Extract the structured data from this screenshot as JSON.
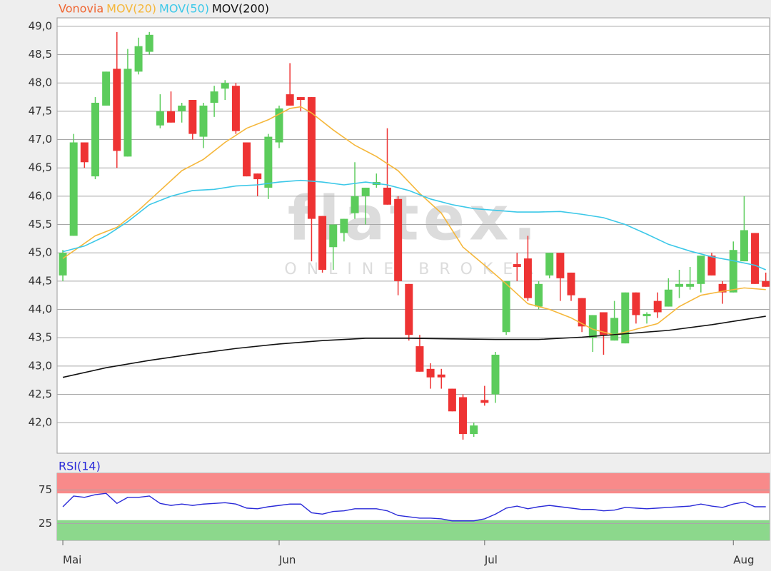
{
  "chart_data": [
    {
      "type": "candlestick",
      "watermark": {
        "brand": "flatex.",
        "tagline": "ONLINE BROKER"
      },
      "xlim": [
        -0.53,
        65.35
      ],
      "ylim": [
        41.46,
        49.15
      ],
      "yticks": [
        {
          "value": 42.0,
          "label": "42,0"
        },
        {
          "value": 42.5,
          "label": "42,5"
        },
        {
          "value": 43.0,
          "label": "43,0"
        },
        {
          "value": 43.5,
          "label": "43,5"
        },
        {
          "value": 44.0,
          "label": "44,0"
        },
        {
          "value": 44.5,
          "label": "44,5"
        },
        {
          "value": 45.0,
          "label": "45,0"
        },
        {
          "value": 45.5,
          "label": "45,5"
        },
        {
          "value": 46.0,
          "label": "46,0"
        },
        {
          "value": 46.5,
          "label": "46,5"
        },
        {
          "value": 47.0,
          "label": "47,0"
        },
        {
          "value": 47.5,
          "label": "47,5"
        },
        {
          "value": 48.0,
          "label": "48,0"
        },
        {
          "value": 48.5,
          "label": "48,5"
        },
        {
          "value": 49.0,
          "label": "49,0"
        }
      ],
      "grid": true,
      "series": [
        {
          "name": "Vonovia",
          "type": "candlestick",
          "color": "#f0642f",
          "up_color": "#5ccc5c",
          "down_color": "#ee3333",
          "open": [
            44.6,
            45.3,
            46.95,
            46.35,
            47.6,
            48.25,
            46.7,
            48.2,
            48.55,
            47.25,
            47.5,
            47.5,
            47.7,
            47.05,
            47.65,
            47.9,
            47.95,
            46.95,
            46.4,
            46.15,
            46.95,
            47.8,
            47.75,
            47.75,
            45.65,
            45.1,
            45.35,
            45.7,
            46.0,
            46.2,
            46.15,
            45.95,
            44.45,
            43.35,
            42.95,
            42.85,
            42.6,
            42.45,
            41.8,
            42.4,
            42.5,
            43.6,
            44.8,
            44.9,
            44.05,
            44.6,
            45.0,
            44.65,
            44.2,
            43.5,
            43.95,
            43.45,
            43.4,
            44.3,
            43.88,
            44.15,
            44.05,
            44.4,
            44.4,
            44.45,
            44.95,
            44.45,
            44.3,
            44.85,
            45.35,
            44.5
          ],
          "high": [
            45.05,
            47.1,
            46.95,
            47.75,
            48.2,
            48.9,
            48.6,
            48.8,
            48.9,
            47.8,
            47.85,
            47.65,
            47.7,
            47.65,
            47.95,
            48.05,
            48.0,
            46.95,
            46.4,
            47.1,
            47.6,
            48.35,
            47.75,
            47.75,
            45.65,
            45.5,
            45.6,
            46.6,
            46.15,
            46.4,
            47.2,
            46.0,
            44.45,
            43.55,
            43.05,
            42.95,
            42.6,
            42.5,
            42.0,
            42.65,
            43.25,
            44.5,
            45.0,
            45.3,
            44.5,
            45.0,
            45.0,
            44.65,
            44.2,
            43.9,
            43.95,
            44.15,
            44.3,
            44.3,
            43.95,
            44.3,
            44.55,
            44.7,
            44.75,
            44.95,
            45.0,
            44.5,
            45.2,
            46.0,
            45.35,
            44.65
          ],
          "low": [
            44.5,
            45.3,
            46.5,
            46.3,
            47.6,
            46.5,
            46.7,
            48.15,
            48.5,
            47.2,
            47.3,
            47.3,
            47.0,
            46.85,
            47.4,
            47.7,
            47.1,
            46.35,
            46.0,
            45.95,
            46.85,
            47.6,
            47.5,
            44.85,
            44.65,
            44.7,
            45.2,
            45.6,
            45.5,
            46.15,
            45.85,
            44.25,
            43.45,
            42.9,
            42.6,
            42.6,
            42.2,
            41.7,
            41.75,
            42.3,
            42.35,
            43.55,
            44.5,
            44.15,
            44.0,
            44.55,
            44.15,
            44.15,
            43.6,
            43.25,
            43.2,
            43.45,
            43.4,
            43.75,
            43.75,
            43.85,
            44.05,
            44.2,
            44.35,
            44.3,
            44.6,
            44.1,
            44.3,
            44.85,
            44.45,
            44.4
          ],
          "close": [
            45.0,
            46.95,
            46.6,
            47.65,
            48.2,
            46.8,
            48.25,
            48.65,
            48.85,
            47.5,
            47.3,
            47.6,
            47.1,
            47.6,
            47.85,
            48.0,
            47.15,
            46.35,
            46.3,
            47.05,
            47.55,
            47.6,
            47.7,
            45.6,
            44.7,
            45.5,
            45.6,
            46.0,
            46.15,
            46.25,
            45.85,
            44.5,
            43.55,
            42.9,
            42.8,
            42.8,
            42.2,
            41.8,
            41.95,
            42.35,
            43.2,
            44.5,
            44.75,
            44.2,
            44.45,
            45.0,
            44.55,
            44.25,
            43.7,
            43.9,
            43.55,
            43.85,
            44.3,
            43.9,
            43.92,
            43.95,
            44.35,
            44.45,
            44.45,
            44.95,
            44.6,
            44.3,
            45.05,
            45.4,
            44.45,
            44.4
          ]
        },
        {
          "name": "MOV(20)",
          "type": "line",
          "color": "#f5b73b",
          "x": [
            0,
            3,
            5,
            7,
            9,
            11,
            13,
            15,
            17,
            19,
            21,
            22,
            23,
            25,
            27,
            29,
            31,
            33,
            35,
            37,
            39,
            41,
            43,
            45,
            47,
            49,
            51,
            53,
            55,
            57,
            59,
            61,
            63,
            65
          ],
          "values": [
            44.9,
            45.3,
            45.45,
            45.75,
            46.1,
            46.45,
            46.65,
            46.95,
            47.2,
            47.35,
            47.55,
            47.58,
            47.47,
            47.17,
            46.9,
            46.7,
            46.45,
            46.05,
            45.7,
            45.1,
            44.78,
            44.45,
            44.1,
            44.0,
            43.85,
            43.65,
            43.55,
            43.65,
            43.75,
            44.05,
            44.25,
            44.32,
            44.38,
            44.35
          ]
        },
        {
          "name": "MOV(50)",
          "type": "line",
          "color": "#3cc8e8",
          "x": [
            0,
            2,
            4,
            6,
            8,
            10,
            12,
            14,
            16,
            18,
            20,
            22,
            24,
            26,
            28,
            30,
            32,
            34,
            36,
            38,
            40,
            42,
            44,
            46,
            48,
            50,
            52,
            54,
            56,
            58,
            60,
            62,
            64,
            65
          ],
          "values": [
            45.02,
            45.12,
            45.3,
            45.55,
            45.85,
            46.0,
            46.1,
            46.12,
            46.18,
            46.2,
            46.25,
            46.28,
            46.25,
            46.2,
            46.25,
            46.2,
            46.1,
            45.95,
            45.85,
            45.78,
            45.75,
            45.72,
            45.72,
            45.73,
            45.68,
            45.62,
            45.5,
            45.33,
            45.15,
            45.03,
            44.93,
            44.86,
            44.78,
            44.7
          ]
        },
        {
          "name": "MOV(200)",
          "type": "line",
          "color": "#111111",
          "x": [
            0,
            4,
            8,
            12,
            16,
            20,
            24,
            28,
            32,
            36,
            40,
            44,
            48,
            52,
            56,
            60,
            63,
            65
          ],
          "values": [
            42.8,
            42.97,
            43.1,
            43.21,
            43.31,
            43.39,
            43.45,
            43.49,
            43.49,
            43.48,
            43.47,
            43.47,
            43.51,
            43.57,
            43.63,
            43.73,
            43.82,
            43.88
          ]
        }
      ]
    },
    {
      "type": "line",
      "xlim": [
        -0.53,
        65.35
      ],
      "xticks": [
        {
          "value": 0,
          "label": "Mai"
        },
        {
          "value": 20,
          "label": "Jun"
        },
        {
          "value": 39,
          "label": "Jul"
        },
        {
          "value": 62,
          "label": "Aug"
        }
      ],
      "ylim": [
        0,
        100
      ],
      "yticks": [
        25,
        75
      ],
      "bands": [
        {
          "from": 70,
          "to": 100,
          "color": "#f88a8a"
        },
        {
          "from": 0,
          "to": 30,
          "color": "#8cd88c"
        }
      ],
      "series": [
        {
          "name": "RSI(14)",
          "color": "#2a2ad8",
          "values": [
            50,
            66,
            64,
            68,
            70,
            55,
            64,
            64,
            66,
            55,
            52,
            54,
            52,
            54,
            55,
            56,
            54,
            48,
            47,
            50,
            52,
            54,
            54,
            41,
            39,
            43,
            44,
            47,
            47,
            47,
            44,
            37,
            35,
            33,
            33,
            32,
            29,
            29,
            29,
            32,
            39,
            48,
            51,
            47,
            50,
            52,
            50,
            48,
            46,
            46,
            44,
            45,
            49,
            48,
            47,
            48,
            49,
            50,
            51,
            54,
            51,
            49,
            54,
            57,
            50,
            50
          ]
        }
      ]
    }
  ]
}
